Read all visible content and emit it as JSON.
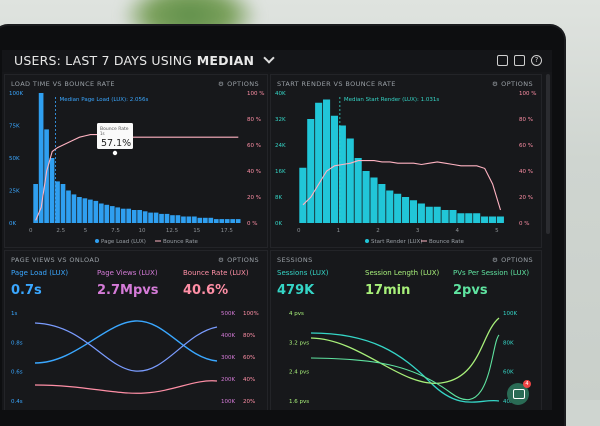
{
  "header": {
    "title_prefix": "USERS: LAST 7 DAYS USING",
    "title_strong": "MEDIAN"
  },
  "panel1": {
    "title": "LOAD TIME VS BOUNCE RATE",
    "options": "OPTIONS",
    "median_label": "Median Page Load (LUX): 2.056s",
    "tooltip_label": "Bounce Rate",
    "tooltip_sub": "1s",
    "tooltip_value": "57.1%",
    "y_ticks": [
      "100K",
      "75K",
      "50K",
      "25K",
      "0K"
    ],
    "y2_ticks": [
      "100 %",
      "80 %",
      "60 %",
      "40 %",
      "20 %",
      "0 %"
    ],
    "x_ticks": [
      "0",
      "2.5",
      "5",
      "7.5",
      "10",
      "12.5",
      "15",
      "17.5"
    ],
    "legend": [
      "Page Load (LUX)",
      "Bounce Rate"
    ]
  },
  "panel2": {
    "title": "START RENDER VS BOUNCE RATE",
    "options": "OPTIONS",
    "median_label": "Median Start Render (LUX): 1.031s",
    "y_ticks": [
      "40K",
      "32K",
      "24K",
      "16K",
      "8K",
      "0K"
    ],
    "y2_ticks": [
      "100 %",
      "80 %",
      "60 %",
      "40 %",
      "20 %",
      "0 %"
    ],
    "x_ticks": [
      "0",
      "1",
      "2",
      "3",
      "4",
      "5"
    ],
    "legend": [
      "Start Render (LUX)",
      "Bounce Rate"
    ]
  },
  "panel3": {
    "title": "PAGE VIEWS VS ONLOAD",
    "options": "OPTIONS",
    "metrics": [
      {
        "label": "Page Load (LUX)",
        "value": "0.7s",
        "color": "#3aa7ff"
      },
      {
        "label": "Page Views (LUX)",
        "value": "2.7Mpvs",
        "color": "#d57bd8"
      },
      {
        "label": "Bounce Rate (LUX)",
        "value": "40.6%",
        "color": "#ff8fa6"
      }
    ],
    "y_ticks": [
      "1s",
      "0.8s",
      "0.6s",
      "0.4s"
    ],
    "y2_ticks": [
      "500K",
      "400K",
      "300K",
      "200K",
      "100K"
    ],
    "y3_ticks": [
      "100%",
      "80%",
      "60%",
      "40%",
      "20%"
    ]
  },
  "panel4": {
    "title": "SESSIONS",
    "options": "OPTIONS",
    "metrics": [
      {
        "label": "Sessions (LUX)",
        "value": "479K",
        "color": "#35d6c7"
      },
      {
        "label": "Session Length (LUX)",
        "value": "17min",
        "color": "#a8f07a"
      },
      {
        "label": "PVs Per Session (LUX)",
        "value": "2pvs",
        "color": "#5fe3a0"
      }
    ],
    "y_ticks": [
      "4 pvs",
      "3.2 pvs",
      "2.4 pvs",
      "1.6 pvs"
    ],
    "y2_ticks": [
      "100K",
      "80K",
      "60K",
      "40K"
    ],
    "chat_badge": "4"
  },
  "chart_data": [
    {
      "type": "bar",
      "title": "LOAD TIME VS BOUNCE RATE",
      "categories": [
        "0.25",
        "0.75",
        "1.25",
        "1.75",
        "2.25",
        "2.75",
        "3.25",
        "3.75",
        "4.25",
        "4.75",
        "5.25",
        "5.75",
        "6.25",
        "6.75",
        "7.25",
        "7.75",
        "8.25",
        "8.75",
        "9.25",
        "9.75",
        "10.25",
        "10.75",
        "11.25",
        "11.75",
        "12.25",
        "12.75",
        "13.25",
        "13.75",
        "14.25",
        "14.75",
        "15.25",
        "15.75",
        "16.25",
        "16.75",
        "17.25",
        "17.75",
        "18.25",
        "18.75"
      ],
      "series": [
        {
          "name": "Page Load (LUX)",
          "values": [
            30,
            100,
            72,
            50,
            32,
            30,
            25,
            22,
            20,
            19,
            18,
            17,
            15,
            14,
            13,
            12,
            11,
            11,
            10,
            10,
            9,
            8,
            8,
            7,
            7,
            6,
            6,
            5,
            5,
            5,
            4,
            4,
            4,
            3,
            3,
            3,
            3,
            3
          ]
        },
        {
          "name": "Bounce Rate",
          "line_percent": [
            2,
            12,
            40,
            55,
            58,
            60,
            62,
            64,
            66,
            67,
            68,
            68,
            68,
            67,
            66,
            66,
            66,
            66,
            66,
            66,
            66,
            66,
            66,
            66,
            66,
            66,
            66,
            66,
            66,
            66,
            66,
            66,
            66,
            66,
            66,
            66,
            66,
            66
          ]
        }
      ],
      "xlim": [
        0,
        19
      ],
      "ylim": [
        0,
        100
      ]
    },
    {
      "type": "bar",
      "title": "START RENDER VS BOUNCE RATE",
      "categories": [
        "0.2",
        "0.4",
        "0.6",
        "0.8",
        "1.0",
        "1.2",
        "1.4",
        "1.6",
        "1.8",
        "2.0",
        "2.2",
        "2.4",
        "2.6",
        "2.8",
        "3.0",
        "3.2",
        "3.4",
        "3.6",
        "3.8",
        "4.0",
        "4.2",
        "4.4",
        "4.6",
        "4.8",
        "5.0",
        "5.2"
      ],
      "series": [
        {
          "name": "Start Render (LUX)",
          "values": [
            17,
            32,
            37,
            38,
            33,
            30,
            26,
            20,
            16,
            14,
            12,
            10,
            9,
            8,
            7,
            6,
            5,
            5,
            4,
            4,
            3,
            3,
            3,
            2,
            2,
            2
          ]
        },
        {
          "name": "Bounce Rate",
          "line_percent": [
            14,
            20,
            30,
            40,
            44,
            45,
            46,
            48,
            48,
            48,
            47,
            47,
            46,
            46,
            46,
            45,
            46,
            47,
            46,
            45,
            44,
            44,
            44,
            42,
            30,
            10
          ]
        }
      ],
      "xlim": [
        0,
        5.4
      ],
      "ylim": [
        0,
        40
      ]
    }
  ]
}
